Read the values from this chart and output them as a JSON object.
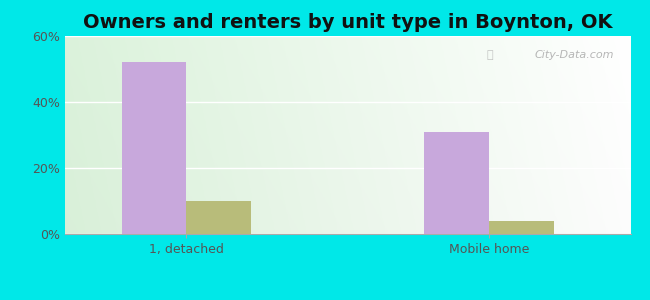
{
  "title": "Owners and renters by unit type in Boynton, OK",
  "categories": [
    "1, detached",
    "Mobile home"
  ],
  "owner_values": [
    52,
    31
  ],
  "renter_values": [
    10,
    4
  ],
  "owner_color": "#c8a8dc",
  "renter_color": "#b8bc7a",
  "ylim": [
    0,
    60
  ],
  "yticks": [
    0,
    20,
    40,
    60
  ],
  "ytick_labels": [
    "0%",
    "20%",
    "40%",
    "60%"
  ],
  "bar_width": 0.32,
  "group_positions": [
    1.0,
    2.5
  ],
  "watermark": "City-Data.com",
  "title_fontsize": 14,
  "tick_fontsize": 9,
  "legend_fontsize": 9,
  "cyan_border": "#00e8e8",
  "fig_width": 6.5,
  "fig_height": 3.0
}
